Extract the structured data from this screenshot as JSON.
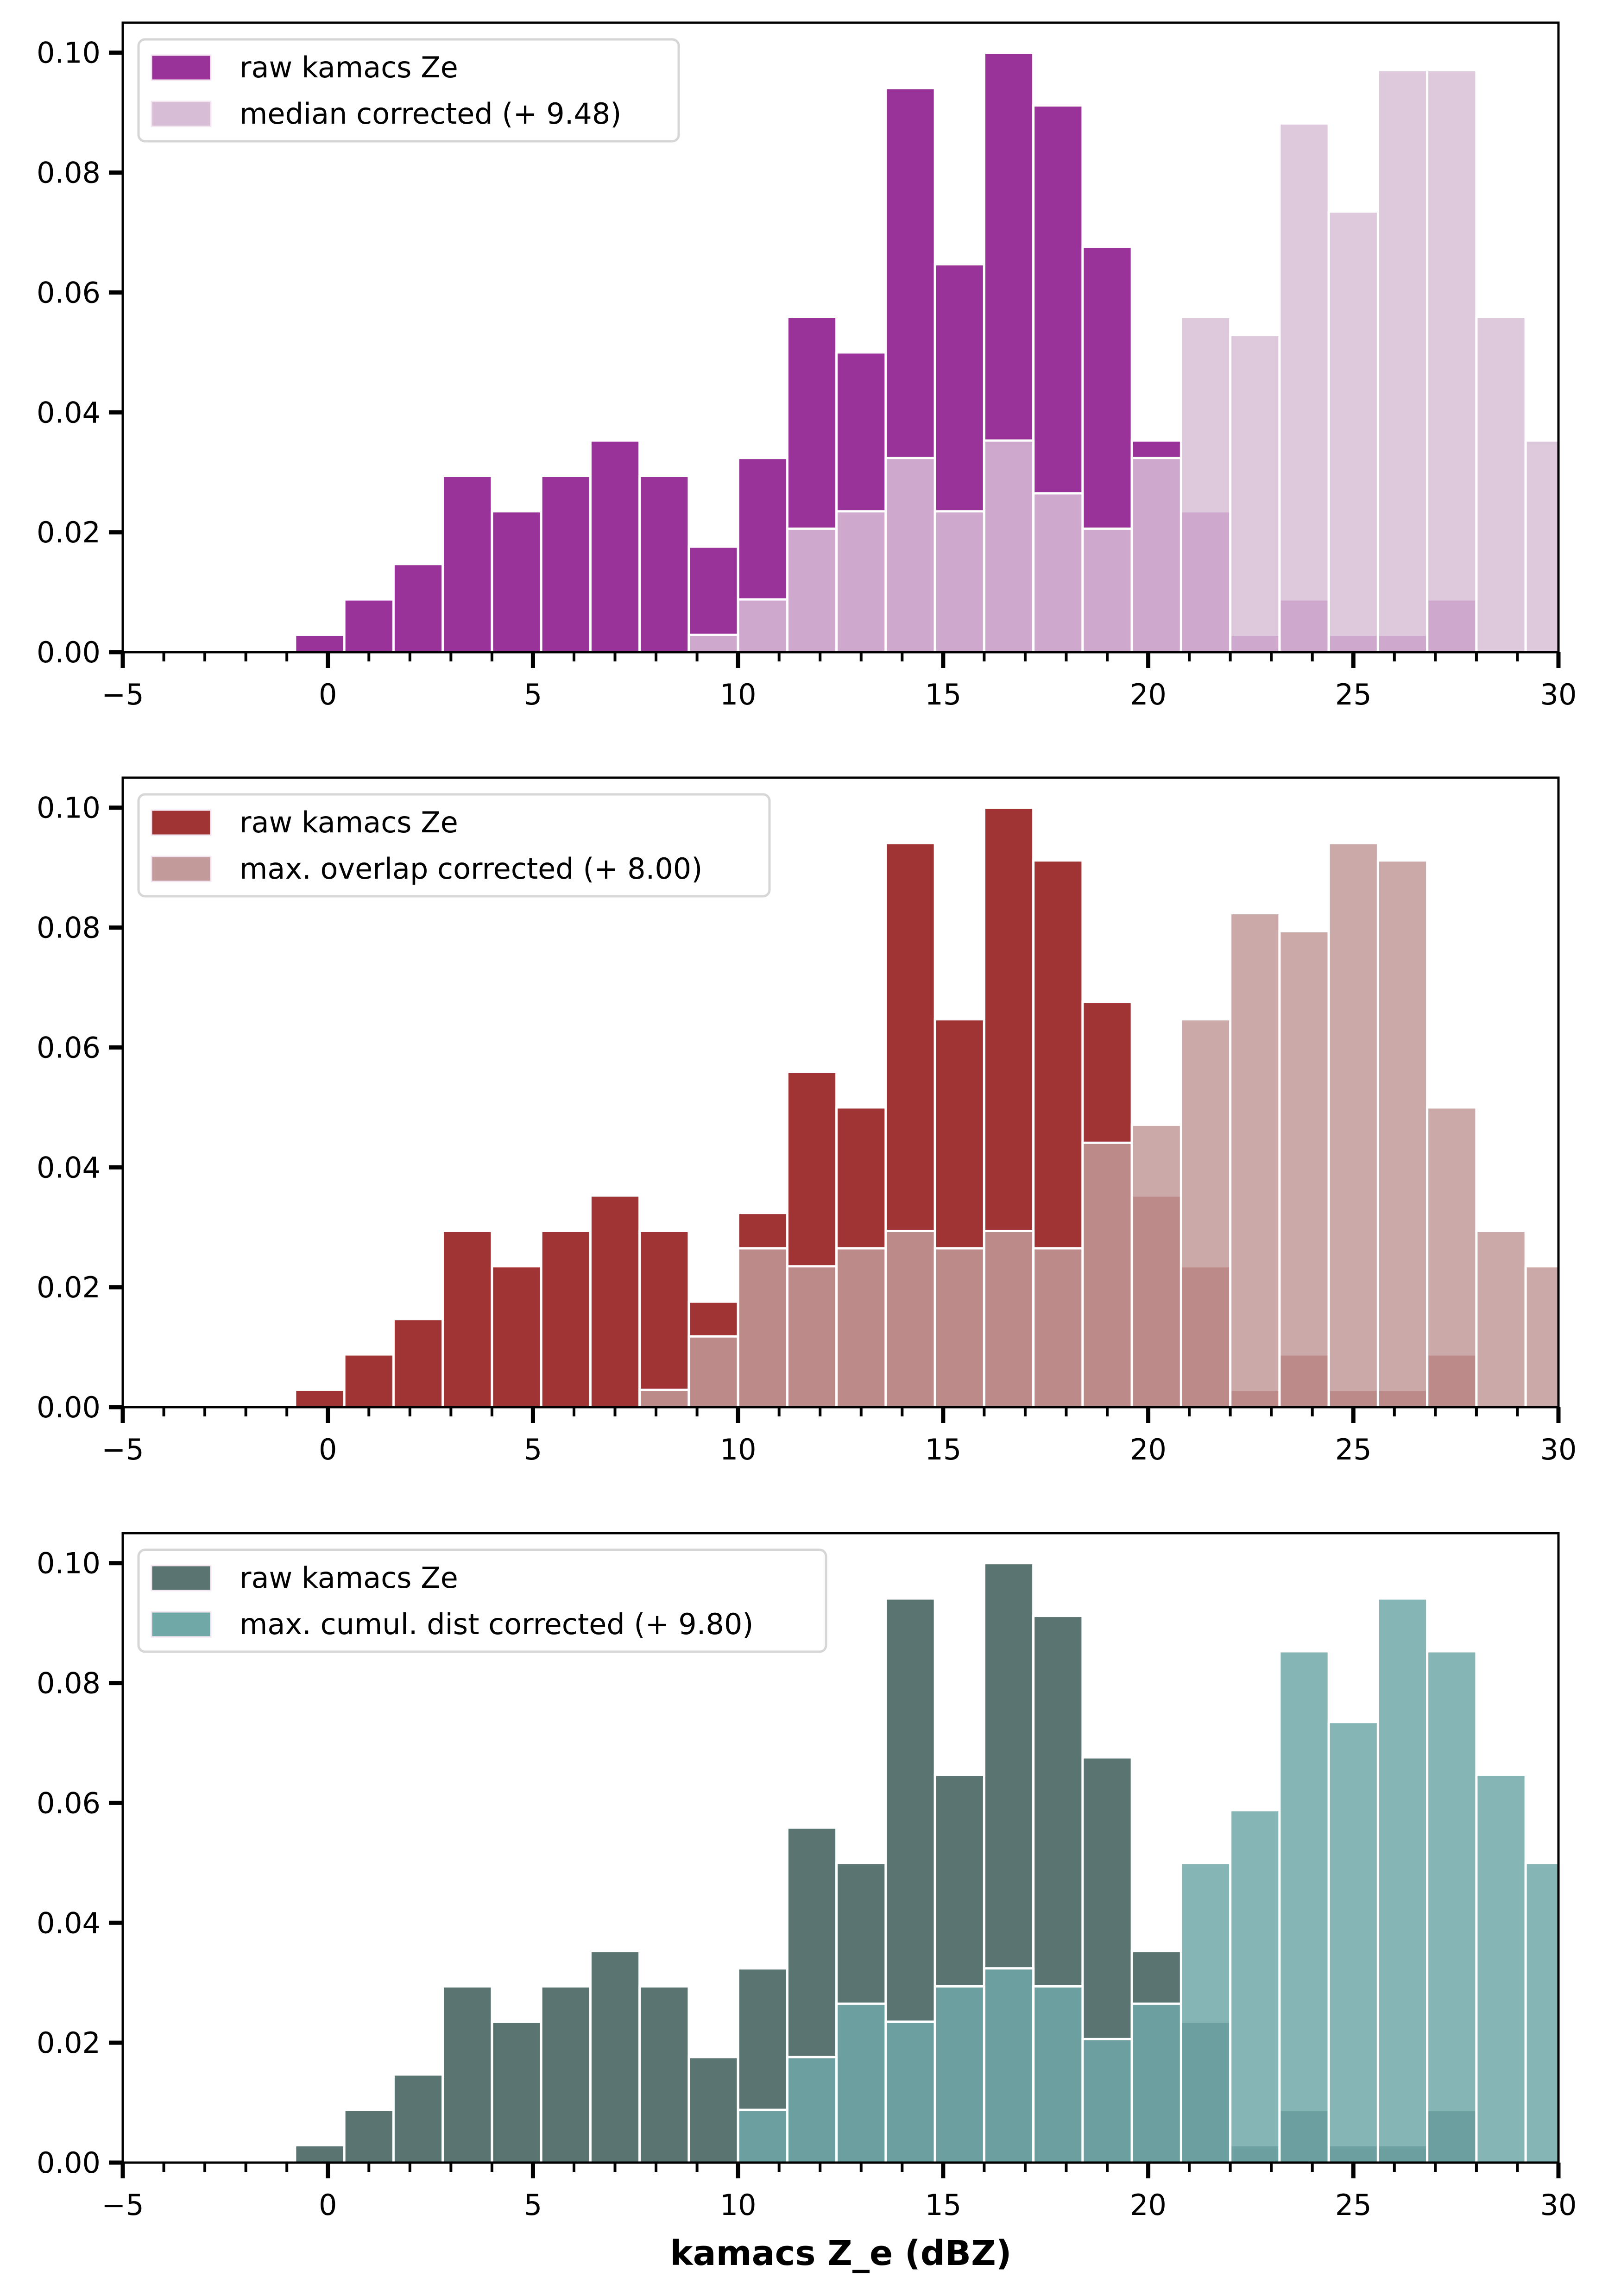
{
  "figure": {
    "xlabel": "kamacs Z_e (dBZ)"
  },
  "chart_data": [
    {
      "type": "bar",
      "subtype": "overlaid histogram",
      "title": "",
      "xlabel": "",
      "ylabel": "",
      "xlim": [
        -5,
        30
      ],
      "ylim": [
        0,
        0.105
      ],
      "x_ticks": [
        -5,
        0,
        5,
        10,
        15,
        20,
        25,
        30
      ],
      "x_tick_labels": [
        "−5",
        "0",
        "5",
        "10",
        "15",
        "20",
        "25",
        "30"
      ],
      "x_minor_tick_step": 1,
      "y_ticks": [
        0.0,
        0.02,
        0.04,
        0.06,
        0.08,
        0.1
      ],
      "y_tick_labels": [
        "0.00",
        "0.02",
        "0.04",
        "0.06",
        "0.08",
        "0.10"
      ],
      "grid": false,
      "legend_position": "top-left",
      "bin_width": 1.2,
      "series": [
        {
          "name": "raw kamacs Ze",
          "color": "#993399",
          "bin_start": -0.8,
          "values": [
            0.0029,
            0.0088,
            0.0147,
            0.0294,
            0.0235,
            0.0294,
            0.0353,
            0.0294,
            0.0176,
            0.0324,
            0.0559,
            0.05,
            0.0941,
            0.0647,
            0.1,
            0.0912,
            0.0676,
            0.0353,
            0.0235,
            0.0029,
            0.0088,
            0.0029,
            0.0029,
            0.0088,
            0.0,
            0.0
          ]
        },
        {
          "name": "median corrected (+ 9.48)",
          "color": "#D7BED6",
          "opacity": 0.85,
          "bin_start": 8.8,
          "values": [
            0.0029,
            0.0088,
            0.0206,
            0.0235,
            0.0324,
            0.0235,
            0.0353,
            0.0265,
            0.0206,
            0.0324,
            0.0559,
            0.0529,
            0.0882,
            0.0735,
            0.0971,
            0.0971,
            0.0559,
            0.0353
          ]
        }
      ]
    },
    {
      "type": "bar",
      "subtype": "overlaid histogram",
      "title": "",
      "xlabel": "",
      "ylabel": "",
      "xlim": [
        -5,
        30
      ],
      "ylim": [
        0,
        0.105
      ],
      "x_ticks": [
        -5,
        0,
        5,
        10,
        15,
        20,
        25,
        30
      ],
      "x_tick_labels": [
        "−5",
        "0",
        "5",
        "10",
        "15",
        "20",
        "25",
        "30"
      ],
      "x_minor_tick_step": 1,
      "y_ticks": [
        0.0,
        0.02,
        0.04,
        0.06,
        0.08,
        0.1
      ],
      "y_tick_labels": [
        "0.00",
        "0.02",
        "0.04",
        "0.06",
        "0.08",
        "0.10"
      ],
      "grid": false,
      "legend_position": "top-left",
      "bin_width": 1.2,
      "series": [
        {
          "name": "raw kamacs Ze",
          "color": "#A03333",
          "bin_start": -0.8,
          "values": [
            0.0029,
            0.0088,
            0.0147,
            0.0294,
            0.0235,
            0.0294,
            0.0353,
            0.0294,
            0.0176,
            0.0324,
            0.0559,
            0.05,
            0.0941,
            0.0647,
            0.1,
            0.0912,
            0.0676,
            0.0353,
            0.0235,
            0.0029,
            0.0088,
            0.0029,
            0.0029,
            0.0088,
            0.0,
            0.0
          ]
        },
        {
          "name": "max. overlap corrected (+ 8.00)",
          "color": "#C29A9A",
          "opacity": 0.85,
          "bin_start": 7.6,
          "values": [
            0.0029,
            0.0118,
            0.0265,
            0.0235,
            0.0265,
            0.0294,
            0.0265,
            0.0294,
            0.0265,
            0.0441,
            0.0471,
            0.0647,
            0.0824,
            0.0794,
            0.0941,
            0.0912,
            0.05,
            0.0294,
            0.0235
          ]
        }
      ]
    },
    {
      "type": "bar",
      "subtype": "overlaid histogram",
      "title": "",
      "xlabel": "kamacs Z_e (dBZ)",
      "ylabel": "",
      "xlim": [
        -5,
        30
      ],
      "ylim": [
        0,
        0.105
      ],
      "x_ticks": [
        -5,
        0,
        5,
        10,
        15,
        20,
        25,
        30
      ],
      "x_tick_labels": [
        "−5",
        "0",
        "5",
        "10",
        "15",
        "20",
        "25",
        "30"
      ],
      "x_minor_tick_step": 1,
      "y_ticks": [
        0.0,
        0.02,
        0.04,
        0.06,
        0.08,
        0.1
      ],
      "y_tick_labels": [
        "0.00",
        "0.02",
        "0.04",
        "0.06",
        "0.08",
        "0.10"
      ],
      "grid": false,
      "legend_position": "top-left",
      "bin_width": 1.2,
      "series": [
        {
          "name": "raw kamacs Ze",
          "color": "#5A7472",
          "bin_start": -0.8,
          "values": [
            0.0029,
            0.0088,
            0.0147,
            0.0294,
            0.0235,
            0.0294,
            0.0353,
            0.0294,
            0.0176,
            0.0324,
            0.0559,
            0.05,
            0.0941,
            0.0647,
            0.1,
            0.0912,
            0.0676,
            0.0353,
            0.0235,
            0.0029,
            0.0088,
            0.0029,
            0.0029,
            0.0088,
            0.0,
            0.0
          ]
        },
        {
          "name": "max. cumul. dist corrected (+ 9.80)",
          "color": "#70A8A8",
          "opacity": 0.85,
          "bin_start": 10.0,
          "values": [
            0.0088,
            0.0176,
            0.0265,
            0.0235,
            0.0294,
            0.0324,
            0.0294,
            0.0206,
            0.0265,
            0.05,
            0.0588,
            0.0853,
            0.0735,
            0.0941,
            0.0853,
            0.0647,
            0.05
          ]
        }
      ]
    }
  ]
}
